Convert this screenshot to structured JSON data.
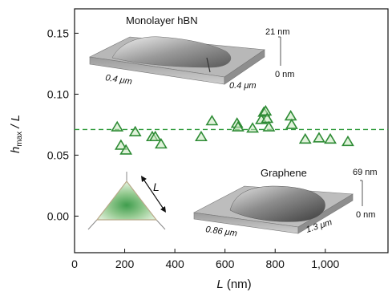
{
  "chart_data": {
    "type": "scatter",
    "xlabel": "L (nm)",
    "xlabel_main": "L",
    "xlabel_unit": " (nm)",
    "ylabel": "h_max / L",
    "ylabel_main": "h",
    "ylabel_sub": "max",
    "ylabel_rest": " / L",
    "xlim": [
      0,
      1250
    ],
    "ylim": [
      -0.03,
      0.17
    ],
    "xticks": [
      0,
      200,
      400,
      600,
      800,
      1000
    ],
    "xtick_labels": [
      "0",
      "200",
      "400",
      "600",
      "800",
      "1,000"
    ],
    "yticks": [
      0.0,
      0.05,
      0.1,
      0.15
    ],
    "ytick_labels": [
      "0.00",
      "0.05",
      "0.10",
      "0.15"
    ],
    "reference_line": {
      "y": 0.071,
      "style": "dashed",
      "color": "#2e9a3a"
    },
    "marker": {
      "shape": "triangle",
      "stroke": "#2e8b35",
      "fill": "#c9e8bd"
    },
    "points": [
      {
        "x": 170,
        "y": 0.073
      },
      {
        "x": 185,
        "y": 0.058
      },
      {
        "x": 205,
        "y": 0.054
      },
      {
        "x": 242,
        "y": 0.069
      },
      {
        "x": 310,
        "y": 0.065
      },
      {
        "x": 322,
        "y": 0.065
      },
      {
        "x": 345,
        "y": 0.059
      },
      {
        "x": 505,
        "y": 0.065
      },
      {
        "x": 548,
        "y": 0.078
      },
      {
        "x": 648,
        "y": 0.076
      },
      {
        "x": 652,
        "y": 0.073
      },
      {
        "x": 710,
        "y": 0.072
      },
      {
        "x": 745,
        "y": 0.079
      },
      {
        "x": 755,
        "y": 0.085
      },
      {
        "x": 762,
        "y": 0.086
      },
      {
        "x": 768,
        "y": 0.08
      },
      {
        "x": 775,
        "y": 0.073
      },
      {
        "x": 862,
        "y": 0.082
      },
      {
        "x": 866,
        "y": 0.075
      },
      {
        "x": 920,
        "y": 0.063
      },
      {
        "x": 975,
        "y": 0.064
      },
      {
        "x": 1020,
        "y": 0.063
      },
      {
        "x": 1090,
        "y": 0.061
      }
    ]
  },
  "insets": {
    "hbn": {
      "title": "Monolayer hBN",
      "dim_left": "0.4 μm",
      "dim_right": "0.4 μm",
      "z_top": "21 nm",
      "z_bottom": "0 nm"
    },
    "graphene": {
      "title": "Graphene",
      "dim_left": "0.86 μm",
      "dim_right": "1.3 μm",
      "z_top": "69 nm",
      "z_bottom": "0 nm"
    },
    "triangle_label": "L"
  },
  "colors": {
    "axis": "#111111",
    "accent": "#2e9a3a"
  }
}
